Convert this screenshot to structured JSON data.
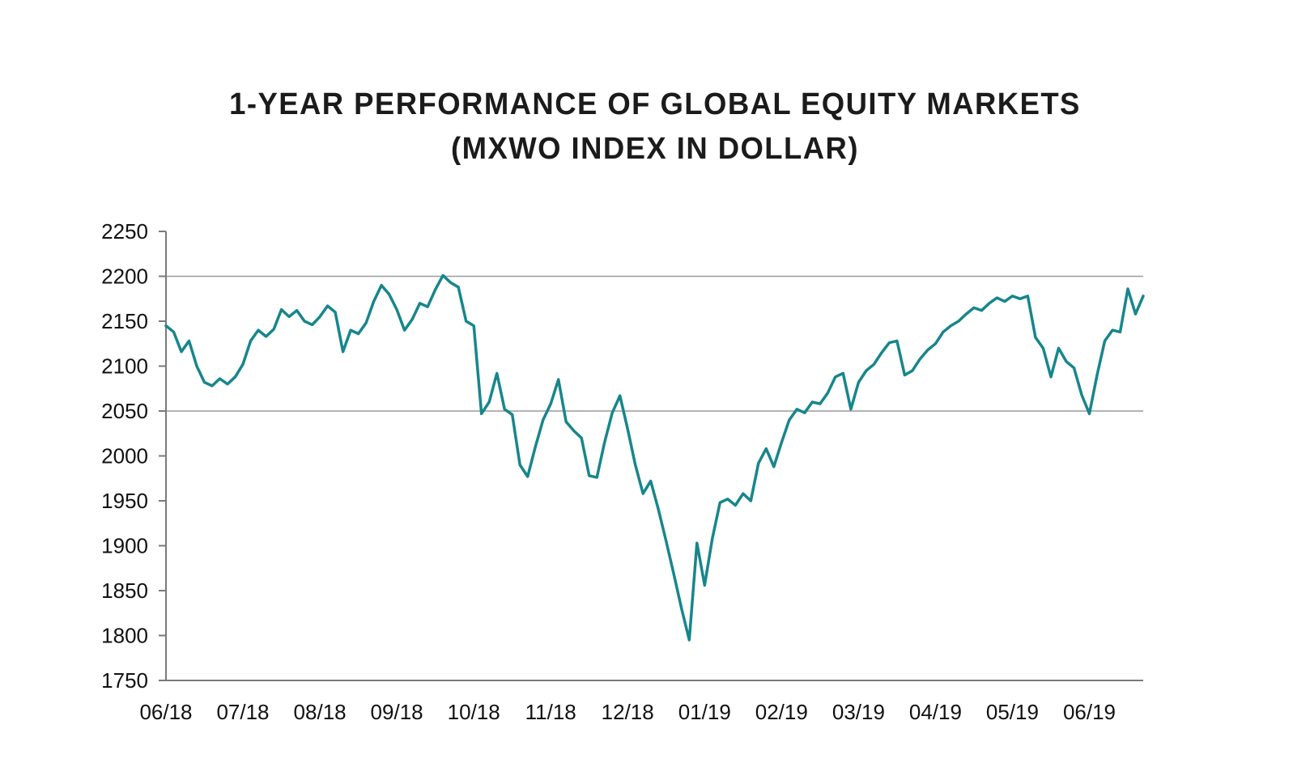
{
  "page": {
    "background_color": "#ffffff"
  },
  "chart_data": {
    "type": "line",
    "title": "1-YEAR PERFORMANCE OF GLOBAL EQUITY MARKETS (MXWO INDEX IN DOLLAR)",
    "title_line1": "1-YEAR PERFORMANCE OF GLOBAL EQUITY MARKETS",
    "title_line2": "(MXWO INDEX IN DOLLAR)",
    "xlabel": "",
    "ylabel": "",
    "xlim": [
      0,
      12.7
    ],
    "ylim": [
      1750,
      2250
    ],
    "y_ticks": [
      1750,
      1800,
      1850,
      1900,
      1950,
      2000,
      2050,
      2100,
      2150,
      2200,
      2250
    ],
    "gridlines_y": [
      2050,
      2200
    ],
    "grid_on": true,
    "legend_position": "none",
    "grid_color": "#9b9b9b",
    "axis_color": "#7a7a7a",
    "tick_label_color": "#111111",
    "x_tick_labels": [
      "06/18",
      "07/18",
      "08/18",
      "09/18",
      "10/18",
      "11/18",
      "12/18",
      "01/19",
      "02/19",
      "03/19",
      "04/19",
      "05/19",
      "06/19"
    ],
    "x_tick_positions": [
      0,
      1,
      2,
      3,
      4,
      5,
      6,
      7,
      8,
      9,
      10,
      11,
      12
    ],
    "series": [
      {
        "name": "MXWO Index in Dollar",
        "color": "#17868c",
        "line_width": 3.5,
        "x_start": 0,
        "x_step": 0.1,
        "values": [
          2145,
          2138,
          2116,
          2128,
          2100,
          2082,
          2078,
          2086,
          2080,
          2088,
          2102,
          2128,
          2140,
          2133,
          2141,
          2163,
          2155,
          2162,
          2150,
          2146,
          2155,
          2167,
          2160,
          2116,
          2140,
          2136,
          2148,
          2172,
          2190,
          2180,
          2163,
          2140,
          2152,
          2170,
          2166,
          2185,
          2201,
          2193,
          2188,
          2150,
          2145,
          2047,
          2060,
          2092,
          2052,
          2046,
          1990,
          1977,
          2010,
          2040,
          2058,
          2085,
          2038,
          2028,
          2020,
          1978,
          1976,
          2015,
          2048,
          2067,
          2030,
          1990,
          1958,
          1972,
          1940,
          1905,
          1868,
          1830,
          1795,
          1903,
          1856,
          1908,
          1948,
          1952,
          1945,
          1958,
          1950,
          1992,
          2008,
          1988,
          2015,
          2040,
          2052,
          2048,
          2060,
          2058,
          2070,
          2088,
          2092,
          2052,
          2082,
          2095,
          2102,
          2115,
          2126,
          2128,
          2090,
          2095,
          2108,
          2118,
          2125,
          2138,
          2145,
          2150,
          2158,
          2165,
          2162,
          2170,
          2176,
          2172,
          2178,
          2175,
          2178,
          2132,
          2120,
          2088,
          2120,
          2105,
          2098,
          2068,
          2047,
          2090,
          2128,
          2140,
          2138,
          2186,
          2158,
          2178
        ]
      }
    ]
  }
}
